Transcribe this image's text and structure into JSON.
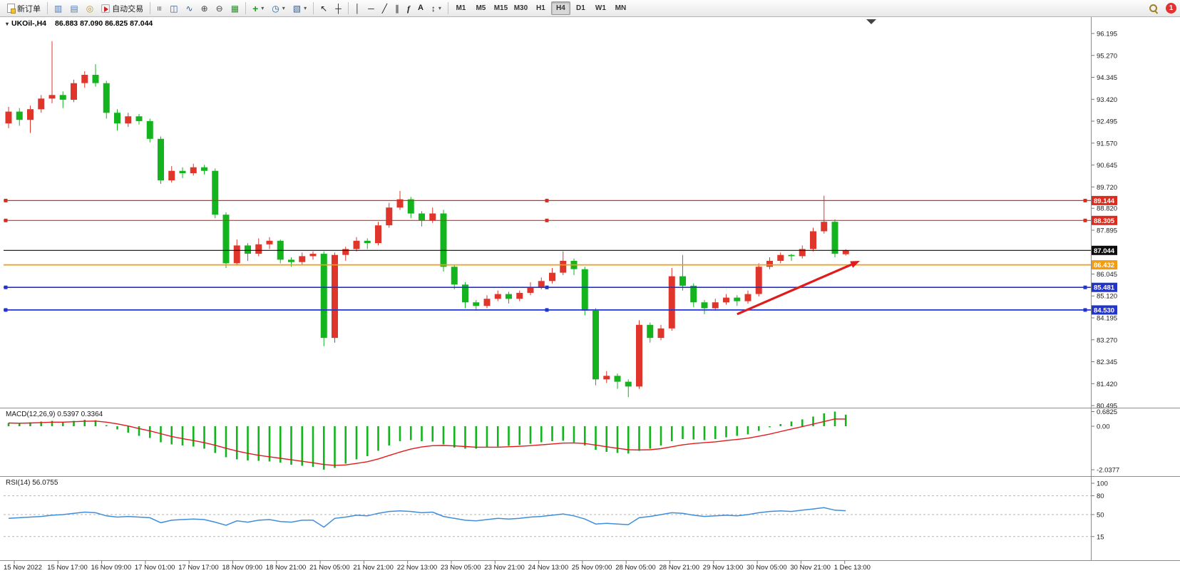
{
  "toolbar": {
    "timeframes": [
      "M1",
      "M5",
      "M15",
      "M30",
      "H1",
      "H4",
      "D1",
      "W1",
      "MN"
    ],
    "active_timeframe": "H4",
    "dropdown_glyph": "▾",
    "notification_count": "1",
    "items": [
      {
        "type": "button",
        "name": "new-order-button",
        "icon": "doc",
        "label": "新订单"
      },
      {
        "type": "sep"
      },
      {
        "type": "icon",
        "name": "market-watch-button",
        "glyph": "▥",
        "color": "#4e79b2"
      },
      {
        "type": "icon",
        "name": "data-window-button",
        "glyph": "▤",
        "color": "#4e79b2"
      },
      {
        "type": "icon",
        "name": "navigator-button",
        "glyph": "◎",
        "color": "#b7953a"
      },
      {
        "type": "button",
        "name": "auto-trading-button",
        "icon": "auto",
        "label": "自动交易"
      },
      {
        "type": "sep"
      },
      {
        "type": "icon",
        "name": "bar-chart-type-button",
        "glyph": "≡",
        "cls": "rot90",
        "color": "#3a7d3a"
      },
      {
        "type": "icon",
        "name": "candlestick-type-button",
        "glyph": "◫",
        "color": "#3a5d8a"
      },
      {
        "type": "icon",
        "name": "line-chart-type-button",
        "glyph": "∿",
        "color": "#3a5d8a"
      },
      {
        "type": "icon",
        "name": "zoom-in-button",
        "glyph": "⊕",
        "color": "#444"
      },
      {
        "type": "icon",
        "name": "zoom-out-button",
        "glyph": "⊖",
        "color": "#444"
      },
      {
        "type": "icon",
        "name": "grid-button",
        "glyph": "▦",
        "color": "#2e8f2e"
      },
      {
        "type": "sep"
      },
      {
        "type": "icon",
        "name": "indicators-button",
        "glyph": "+",
        "cls": "boldg",
        "color": "#1f9e1f",
        "dropdown": true
      },
      {
        "type": "icon",
        "name": "periods-button",
        "glyph": "◷",
        "color": "#3a5d8a",
        "dropdown": true
      },
      {
        "type": "icon",
        "name": "templates-button",
        "glyph": "▧",
        "color": "#3a5d8a",
        "dropdown": true
      },
      {
        "type": "sep"
      },
      {
        "type": "icon",
        "name": "cursor-button",
        "glyph": "↖",
        "color": "#222"
      },
      {
        "type": "icon",
        "name": "crosshair-button",
        "glyph": "┼",
        "color": "#222"
      },
      {
        "type": "sep"
      },
      {
        "type": "icon",
        "name": "vertical-line-button",
        "glyph": "│",
        "color": "#222"
      },
      {
        "type": "icon",
        "name": "horizontal-line-button",
        "glyph": "─",
        "color": "#222"
      },
      {
        "type": "icon",
        "name": "trendline-button",
        "glyph": "╱",
        "color": "#222"
      },
      {
        "type": "icon",
        "name": "channel-button",
        "glyph": "∥",
        "color": "#222"
      },
      {
        "type": "icon",
        "name": "fibonacci-button",
        "glyph": "f",
        "cls": "fib",
        "color": "#222"
      },
      {
        "type": "icon",
        "name": "text-button",
        "glyph": "A",
        "cls": "textic",
        "color": "#222"
      },
      {
        "type": "icon",
        "name": "arrows-button",
        "glyph": "↕",
        "color": "#222",
        "dropdown": true
      },
      {
        "type": "sep"
      },
      {
        "type": "tf-group"
      },
      {
        "type": "spacer"
      },
      {
        "type": "icon",
        "name": "search-button",
        "cls": "mag"
      },
      {
        "type": "badge",
        "name": "notification-badge",
        "label": "1"
      }
    ]
  },
  "chart": {
    "symbol_label": "UKOil-,H4",
    "ohlc_label": "86.883 87.090 86.825 87.044",
    "macd_label": "MACD(12,26,9) 0.5397 0.3364",
    "rsi_label": "RSI(14) 56.0755"
  },
  "chart_data": [
    {
      "type": "candlestick",
      "symbol": "UKOil-",
      "timeframe": "H4",
      "bull_color": "#e0352b",
      "bear_color": "#14b41e",
      "ylim": [
        80.495,
        96.195
      ],
      "current": {
        "open": 86.883,
        "high": 87.09,
        "low": 86.825,
        "close": 87.044
      },
      "price_axis": [
        "96.195",
        "95.270",
        "94.345",
        "93.420",
        "92.495",
        "91.570",
        "90.645",
        "89.720",
        "88.820",
        "87.895",
        "86.045",
        "85.120",
        "84.195",
        "83.270",
        "82.345",
        "81.420",
        "80.495"
      ],
      "time_axis": [
        "15 Nov 2022",
        "15 Nov 17:00",
        "16 Nov 09:00",
        "17 Nov 01:00",
        "17 Nov 17:00",
        "18 Nov 09:00",
        "18 Nov 21:00",
        "21 Nov 05:00",
        "21 Nov 21:00",
        "22 Nov 13:00",
        "23 Nov 05:00",
        "23 Nov 21:00",
        "24 Nov 13:00",
        "25 Nov 09:00",
        "28 Nov 05:00",
        "28 Nov 21:00",
        "29 Nov 13:00",
        "30 Nov 05:00",
        "30 Nov 21:00",
        "1 Dec 13:00"
      ],
      "hlines": [
        {
          "label": "89.144",
          "price": 89.144,
          "color": "#dd2c1e",
          "width": 1.2,
          "handles": true
        },
        {
          "label": "88.305",
          "price": 88.305,
          "color": "#dd2c1e",
          "width": 1.2,
          "handles": true
        },
        {
          "label": "87.044",
          "price": 87.044,
          "color": "#0d0d0d",
          "width": 1.1,
          "handles": false
        },
        {
          "label": "86.432",
          "price": 86.432,
          "color": "#f39c12",
          "width": 1.7,
          "handles": false
        },
        {
          "label": "85.481",
          "price": 85.481,
          "color": "#2234cc",
          "width": 1.7,
          "handles": true
        },
        {
          "label": "84.530",
          "price": 84.53,
          "color": "#2234cc",
          "width": 1.7,
          "handles": true
        }
      ],
      "annotations": [
        {
          "type": "arrow",
          "from_bar": 67,
          "from_price": 84.35,
          "to_bar": 78.3,
          "to_price": 86.6,
          "color": "#e11b1b"
        }
      ],
      "candles": [
        [
          92.4,
          93.1,
          92.2,
          92.9
        ],
        [
          92.9,
          93.05,
          92.3,
          92.55
        ],
        [
          92.55,
          93.15,
          92.0,
          93.0
        ],
        [
          93.0,
          93.6,
          92.85,
          93.45
        ],
        [
          93.45,
          95.87,
          93.25,
          93.6
        ],
        [
          93.6,
          93.75,
          93.05,
          93.4
        ],
        [
          93.4,
          94.25,
          93.3,
          94.1
        ],
        [
          94.1,
          94.6,
          93.9,
          94.45
        ],
        [
          94.45,
          94.9,
          93.95,
          94.1
        ],
        [
          94.1,
          94.2,
          92.6,
          92.85
        ],
        [
          92.85,
          93.0,
          92.1,
          92.4
        ],
        [
          92.4,
          92.85,
          92.25,
          92.7
        ],
        [
          92.7,
          92.8,
          92.35,
          92.5
        ],
        [
          92.5,
          92.6,
          91.6,
          91.75
        ],
        [
          91.75,
          91.85,
          89.85,
          90.0
        ],
        [
          90.0,
          90.6,
          89.9,
          90.4
        ],
        [
          90.4,
          90.55,
          90.1,
          90.3
        ],
        [
          90.3,
          90.7,
          90.2,
          90.55
        ],
        [
          90.55,
          90.65,
          90.25,
          90.4
        ],
        [
          90.4,
          90.5,
          88.4,
          88.55
        ],
        [
          88.55,
          88.65,
          86.3,
          86.5
        ],
        [
          86.5,
          87.5,
          86.4,
          87.25
        ],
        [
          87.25,
          87.35,
          86.6,
          86.9
        ],
        [
          86.9,
          87.55,
          86.8,
          87.3
        ],
        [
          87.3,
          87.6,
          87.1,
          87.45
        ],
        [
          87.45,
          87.5,
          86.5,
          86.65
        ],
        [
          86.65,
          86.75,
          86.35,
          86.55
        ],
        [
          86.55,
          86.95,
          86.45,
          86.8
        ],
        [
          86.8,
          87.0,
          86.65,
          86.9
        ],
        [
          86.9,
          87.0,
          83.0,
          83.35
        ],
        [
          83.35,
          86.95,
          83.15,
          86.85
        ],
        [
          86.85,
          87.2,
          86.6,
          87.1
        ],
        [
          87.1,
          87.6,
          87.0,
          87.45
        ],
        [
          87.45,
          87.55,
          87.1,
          87.35
        ],
        [
          87.35,
          88.25,
          87.25,
          88.1
        ],
        [
          88.1,
          89.05,
          88.0,
          88.85
        ],
        [
          88.85,
          89.55,
          88.75,
          89.2
        ],
        [
          89.2,
          89.3,
          88.4,
          88.6
        ],
        [
          88.6,
          88.7,
          88.05,
          88.3
        ],
        [
          88.3,
          88.85,
          88.2,
          88.6
        ],
        [
          88.6,
          88.75,
          86.15,
          86.35
        ],
        [
          86.35,
          86.45,
          85.4,
          85.6
        ],
        [
          85.6,
          85.7,
          84.6,
          84.85
        ],
        [
          84.85,
          84.95,
          84.5,
          84.7
        ],
        [
          84.7,
          85.15,
          84.6,
          85.0
        ],
        [
          85.0,
          85.35,
          84.9,
          85.2
        ],
        [
          85.2,
          85.3,
          84.8,
          85.0
        ],
        [
          85.0,
          85.35,
          84.9,
          85.25
        ],
        [
          85.25,
          85.7,
          85.15,
          85.5
        ],
        [
          85.5,
          85.9,
          85.4,
          85.75
        ],
        [
          85.75,
          86.3,
          85.65,
          86.1
        ],
        [
          86.1,
          87.0,
          86.0,
          86.6
        ],
        [
          86.6,
          86.7,
          86.0,
          86.25
        ],
        [
          86.25,
          86.35,
          84.3,
          84.5
        ],
        [
          84.5,
          84.6,
          81.35,
          81.6
        ],
        [
          81.6,
          81.95,
          81.45,
          81.75
        ],
        [
          81.75,
          81.85,
          81.2,
          81.5
        ],
        [
          81.5,
          81.6,
          80.85,
          81.3
        ],
        [
          81.3,
          84.1,
          81.2,
          83.9
        ],
        [
          83.9,
          84.0,
          83.15,
          83.35
        ],
        [
          83.35,
          83.9,
          83.25,
          83.75
        ],
        [
          83.75,
          86.3,
          83.65,
          85.95
        ],
        [
          85.95,
          86.85,
          85.35,
          85.55
        ],
        [
          85.55,
          85.65,
          84.65,
          84.85
        ],
        [
          84.85,
          84.95,
          84.35,
          84.6
        ],
        [
          84.6,
          85.0,
          84.5,
          84.85
        ],
        [
          84.85,
          85.2,
          84.75,
          85.05
        ],
        [
          85.05,
          85.15,
          84.7,
          84.9
        ],
        [
          84.9,
          85.35,
          84.8,
          85.2
        ],
        [
          85.2,
          86.5,
          85.1,
          86.35
        ],
        [
          86.35,
          86.75,
          86.25,
          86.6
        ],
        [
          86.6,
          86.95,
          86.5,
          86.85
        ],
        [
          86.85,
          86.9,
          86.6,
          86.8
        ],
        [
          86.8,
          87.25,
          86.7,
          87.1
        ],
        [
          87.1,
          88.0,
          87.0,
          87.85
        ],
        [
          87.85,
          89.35,
          87.75,
          88.25
        ],
        [
          88.25,
          88.35,
          86.75,
          86.9
        ],
        [
          86.883,
          87.09,
          86.825,
          87.044
        ]
      ]
    },
    {
      "type": "bar",
      "name": "MACD(12,26,9)",
      "main_value": 0.5397,
      "signal_value": 0.3364,
      "histogram_color": "#14b41e",
      "signal_color": "#e11b1b",
      "scale": [
        "0.6825",
        "0.00",
        "-2.0377"
      ],
      "values": [
        0.15,
        0.12,
        0.18,
        0.22,
        0.25,
        0.2,
        0.25,
        0.3,
        0.28,
        0.05,
        -0.15,
        -0.3,
        -0.45,
        -0.55,
        -0.75,
        -0.85,
        -0.9,
        -0.95,
        -1.05,
        -1.25,
        -1.45,
        -1.55,
        -1.6,
        -1.62,
        -1.65,
        -1.7,
        -1.8,
        -1.85,
        -1.9,
        -2.03,
        -1.95,
        -1.75,
        -1.55,
        -1.4,
        -1.15,
        -0.9,
        -0.7,
        -0.65,
        -0.7,
        -0.72,
        -0.85,
        -1.0,
        -1.05,
        -1.05,
        -1.0,
        -0.95,
        -0.92,
        -0.88,
        -0.82,
        -0.75,
        -0.7,
        -0.68,
        -0.75,
        -0.9,
        -1.1,
        -1.2,
        -1.25,
        -1.28,
        -1.15,
        -1.05,
        -0.9,
        -0.7,
        -0.6,
        -0.62,
        -0.65,
        -0.6,
        -0.52,
        -0.45,
        -0.38,
        -0.22,
        -0.05,
        0.1,
        0.22,
        0.32,
        0.45,
        0.6,
        0.6825,
        0.5397
      ],
      "signal": [
        0.15,
        0.14,
        0.15,
        0.17,
        0.19,
        0.19,
        0.21,
        0.23,
        0.24,
        0.19,
        0.11,
        0.01,
        -0.11,
        -0.22,
        -0.35,
        -0.48,
        -0.58,
        -0.67,
        -0.77,
        -0.89,
        -1.03,
        -1.16,
        -1.27,
        -1.36,
        -1.43,
        -1.5,
        -1.57,
        -1.64,
        -1.71,
        -1.79,
        -1.83,
        -1.81,
        -1.74,
        -1.66,
        -1.53,
        -1.37,
        -1.21,
        -1.07,
        -0.97,
        -0.91,
        -0.9,
        -0.92,
        -0.95,
        -0.98,
        -0.98,
        -0.98,
        -0.96,
        -0.94,
        -0.91,
        -0.87,
        -0.83,
        -0.79,
        -0.78,
        -0.81,
        -0.88,
        -0.96,
        -1.03,
        -1.1,
        -1.11,
        -1.1,
        -1.05,
        -0.96,
        -0.87,
        -0.81,
        -0.77,
        -0.73,
        -0.67,
        -0.62,
        -0.56,
        -0.47,
        -0.37,
        -0.25,
        -0.13,
        -0.02,
        0.1,
        0.22,
        0.34,
        0.3364
      ]
    },
    {
      "type": "line",
      "name": "RSI(14)",
      "current": 56.0755,
      "line_color": "#3f8edb",
      "ylim": [
        0,
        100
      ],
      "scale_labels": [
        "100",
        "80",
        "50",
        "15"
      ],
      "levels": [
        80,
        50,
        15
      ],
      "values": [
        44,
        45,
        46,
        47,
        49,
        50,
        52,
        54,
        53,
        48,
        46,
        47,
        46,
        45,
        37,
        41,
        42,
        43,
        42,
        38,
        33,
        40,
        38,
        41,
        42,
        39,
        38,
        41,
        41,
        30,
        44,
        46,
        49,
        48,
        52,
        55,
        56,
        55,
        53,
        54,
        47,
        44,
        41,
        40,
        42,
        44,
        43,
        44,
        46,
        47,
        49,
        51,
        48,
        43,
        35,
        36,
        35,
        34,
        45,
        47,
        50,
        53,
        52,
        49,
        47,
        48,
        49,
        48,
        50,
        53,
        55,
        56,
        55,
        57,
        59,
        61,
        57,
        56.08
      ]
    }
  ]
}
